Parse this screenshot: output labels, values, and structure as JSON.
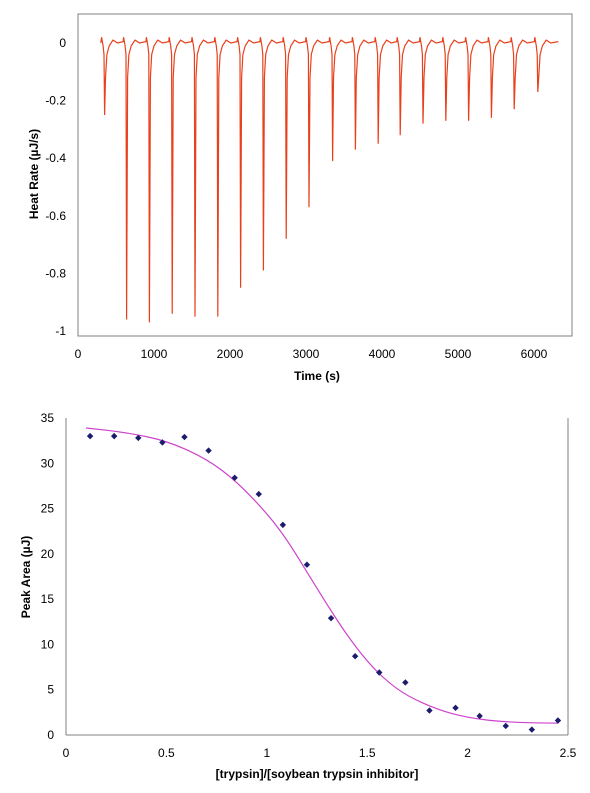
{
  "chart_data": [
    {
      "type": "line",
      "xlabel": "Time (s)",
      "ylabel": "Heat Rate (µJ/s)",
      "xlim": [
        0,
        6500
      ],
      "ylim": [
        -1,
        0.05
      ],
      "xticks": [
        "0",
        "1000",
        "2000",
        "3000",
        "4000",
        "5000",
        "6000"
      ],
      "yticks": [
        "0",
        "-0.2",
        "-0.4",
        "-0.6",
        "-0.8",
        "-1"
      ],
      "grid": false,
      "line_color": "#e8401c",
      "trace_start": 300,
      "trace_end": 6320,
      "injections": [
        {
          "time": 350,
          "depth": -0.25
        },
        {
          "time": 640,
          "depth": -0.96
        },
        {
          "time": 940,
          "depth": -0.97
        },
        {
          "time": 1240,
          "depth": -0.94
        },
        {
          "time": 1540,
          "depth": -0.95
        },
        {
          "time": 1840,
          "depth": -0.95
        },
        {
          "time": 2140,
          "depth": -0.85
        },
        {
          "time": 2440,
          "depth": -0.79
        },
        {
          "time": 2740,
          "depth": -0.68
        },
        {
          "time": 3040,
          "depth": -0.57
        },
        {
          "time": 3350,
          "depth": -0.41
        },
        {
          "time": 3650,
          "depth": -0.37
        },
        {
          "time": 3950,
          "depth": -0.35
        },
        {
          "time": 4240,
          "depth": -0.32
        },
        {
          "time": 4540,
          "depth": -0.28
        },
        {
          "time": 4840,
          "depth": -0.27
        },
        {
          "time": 5140,
          "depth": -0.27
        },
        {
          "time": 5440,
          "depth": -0.26
        },
        {
          "time": 5740,
          "depth": -0.23
        },
        {
          "time": 6050,
          "depth": -0.17
        }
      ]
    },
    {
      "type": "scatter",
      "xlabel": "[trypsin]/[soybean trypsin inhibitor]",
      "ylabel": "Peak Area (µJ)",
      "xlim": [
        0,
        2.5
      ],
      "ylim": [
        0,
        35
      ],
      "xticks": [
        "0",
        "0.5",
        "1",
        "1.5",
        "2",
        "2.5"
      ],
      "yticks": [
        "0",
        "5",
        "10",
        "15",
        "20",
        "25",
        "30",
        "35"
      ],
      "grid": false,
      "point_color": "#1c1c6e",
      "fit_color": "#cc44cc",
      "points": [
        {
          "x": 0.12,
          "y": 33.0
        },
        {
          "x": 0.24,
          "y": 33.0
        },
        {
          "x": 0.36,
          "y": 32.8
        },
        {
          "x": 0.48,
          "y": 32.3
        },
        {
          "x": 0.59,
          "y": 32.9
        },
        {
          "x": 0.71,
          "y": 31.4
        },
        {
          "x": 0.84,
          "y": 28.4
        },
        {
          "x": 0.96,
          "y": 26.6
        },
        {
          "x": 1.08,
          "y": 23.2
        },
        {
          "x": 1.2,
          "y": 18.8
        },
        {
          "x": 1.32,
          "y": 12.9
        },
        {
          "x": 1.44,
          "y": 8.7
        },
        {
          "x": 1.56,
          "y": 6.9
        },
        {
          "x": 1.69,
          "y": 5.8
        },
        {
          "x": 1.81,
          "y": 2.7
        },
        {
          "x": 1.94,
          "y": 3.0
        },
        {
          "x": 2.06,
          "y": 2.1
        },
        {
          "x": 2.19,
          "y": 1.0
        },
        {
          "x": 2.32,
          "y": 0.6
        },
        {
          "x": 2.45,
          "y": 1.6
        }
      ],
      "fit": {
        "x": [
          0.1,
          0.3,
          0.5,
          0.7,
          0.85,
          1.0,
          1.1,
          1.2,
          1.3,
          1.4,
          1.5,
          1.6,
          1.7,
          1.85,
          2.0,
          2.2,
          2.45
        ],
        "y": [
          33.9,
          33.4,
          32.5,
          30.5,
          28.0,
          24.5,
          21.6,
          18.0,
          14.4,
          11.0,
          8.1,
          5.9,
          4.3,
          2.8,
          1.9,
          1.4,
          1.3
        ]
      }
    }
  ]
}
